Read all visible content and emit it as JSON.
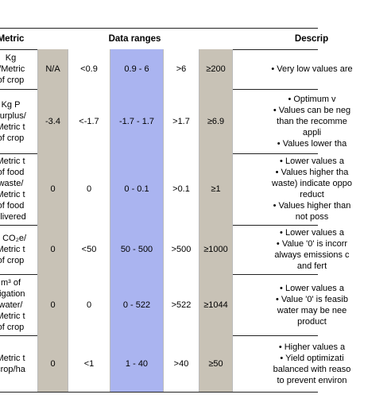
{
  "header": {
    "metric": "Metric",
    "data_ranges": "Data ranges",
    "description": "Descrip"
  },
  "rows": [
    {
      "metric": [
        "Kg",
        "l/Metric",
        "of crop"
      ],
      "ranges": [
        "N/A",
        "<0.9",
        "0.9 - 6",
        ">6",
        "≥200"
      ],
      "description": [
        "• Very low values are"
      ]
    },
    {
      "metric": [
        "Kg P",
        "surplus/",
        "Metric t",
        "of crop"
      ],
      "ranges": [
        "-3.4",
        "<-1.7",
        "-1.7 - 1.7",
        ">1.7",
        "≥6.9"
      ],
      "description": [
        "• Optimum v",
        "• Values can be neg",
        "than the recomme",
        "appli",
        "• Values lower tha"
      ]
    },
    {
      "metric": [
        "Metric t",
        "of food",
        "waste/",
        "Metric t",
        "of food",
        "elivered"
      ],
      "ranges": [
        "0",
        "0",
        "0 - 0.1",
        ">0.1",
        "≥1"
      ],
      "description": [
        "• Lower values a",
        "• Values higher tha",
        "waste) indicate oppo",
        "reduct",
        "• Values higher than",
        "not poss"
      ]
    },
    {
      "metric": [
        "g CO₂e/",
        "Metric t",
        "of crop"
      ],
      "ranges": [
        "0",
        "<50",
        "50 - 500",
        ">500",
        "≥1000"
      ],
      "description": [
        "• Lower values a",
        "• Value '0' is incorr",
        "always emissions c",
        "and fert"
      ]
    },
    {
      "metric": [
        "m³ of",
        "rigation",
        "water/",
        "Metric t",
        "of crop"
      ],
      "ranges": [
        "0",
        "0",
        "0 - 522",
        ">522",
        "≥1044"
      ],
      "description": [
        "• Lower values a",
        "• Value '0' is feasib",
        "water may be nee",
        "product"
      ]
    },
    {
      "metric": [
        "Metric t",
        "crop/ha"
      ],
      "ranges": [
        "0",
        "<1",
        "1 - 40",
        ">40",
        "≥50"
      ],
      "description": [
        "• Higher values a",
        "• Yield optimizati",
        "balanced with reaso",
        "to prevent environ"
      ]
    }
  ]
}
